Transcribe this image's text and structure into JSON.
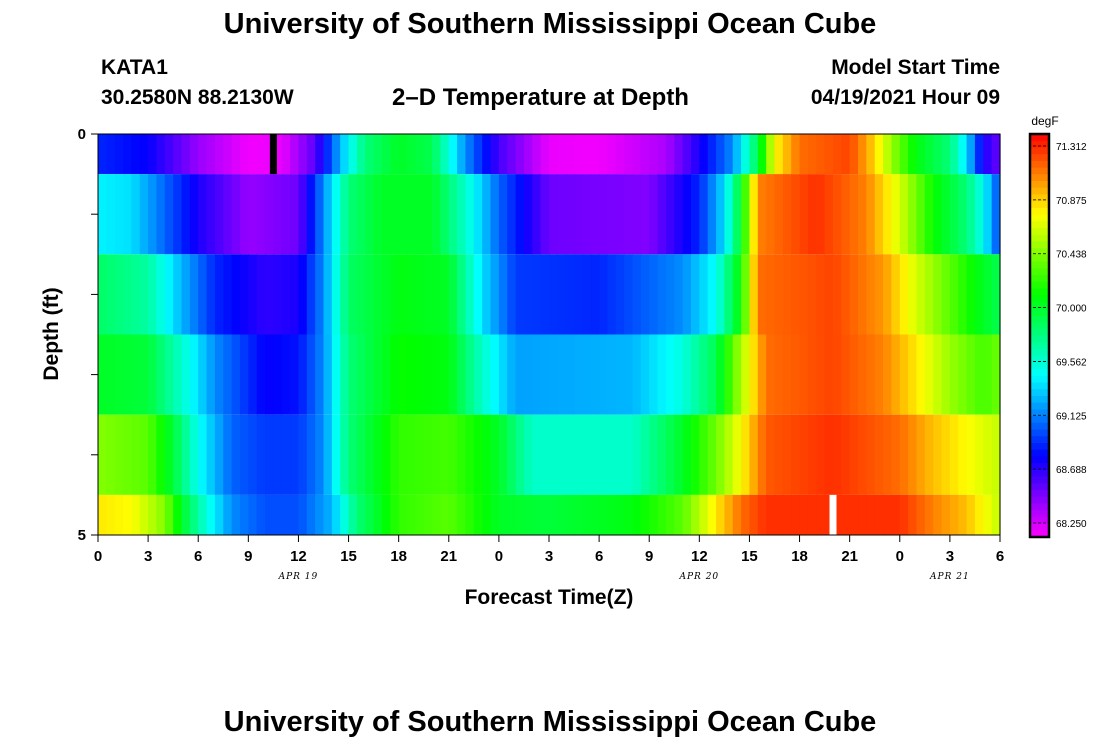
{
  "header": {
    "title": "University of Southern Mississippi Ocean Cube",
    "station_id": "KATA1",
    "station_coords": "30.2580N  88.2130W",
    "chart_title": "2–D Temperature at Depth",
    "model_start_label": "Model Start Time",
    "model_start_value": "04/19/2021 Hour 09"
  },
  "footer": {
    "title": "University of Southern Mississippi Ocean Cube"
  },
  "chart_data": {
    "type": "heatmap",
    "title": "2–D Temperature at Depth",
    "xlabel": "Forecast Time(Z)",
    "ylabel": "Depth (ft)",
    "x_hours_from": "APR 19 00Z",
    "xlim_hours": [
      0,
      54
    ],
    "x_tick_labels": [
      "0",
      "3",
      "6",
      "9",
      "12",
      "15",
      "18",
      "21",
      "0",
      "3",
      "6",
      "9",
      "12",
      "15",
      "18",
      "21",
      "0",
      "3",
      "6"
    ],
    "date_labels": [
      {
        "label": "APR 19",
        "hour": 12
      },
      {
        "label": "APR 20",
        "hour": 36
      },
      {
        "label": "APR 21",
        "hour": 51
      }
    ],
    "y_tick_labels": [
      "0",
      "5"
    ],
    "ylim": [
      0,
      5
    ],
    "depth_band_edges_ft": [
      0,
      0.5,
      1.5,
      2.5,
      3.5,
      4.5,
      5
    ],
    "colorbar": {
      "unit": "degF",
      "min": 68.25,
      "max": 71.312,
      "tick_labels": [
        "71.312",
        "70.875",
        "70.438",
        "70.000",
        "69.562",
        "69.125",
        "68.688",
        "68.250"
      ]
    },
    "markers": [
      {
        "hour": 10.5,
        "depth_from": 0,
        "depth_to": 0.5,
        "color": "#000000"
      },
      {
        "hour": 44,
        "depth_from": 4.5,
        "depth_to": 5,
        "color": "#ffffff"
      }
    ],
    "series": [
      {
        "depth_band": 1,
        "keyframes": [
          [
            0,
            68.95
          ],
          [
            3,
            68.85
          ],
          [
            6,
            68.5
          ],
          [
            9,
            68.28
          ],
          [
            11,
            68.3
          ],
          [
            13,
            68.65
          ],
          [
            14.5,
            69.3
          ],
          [
            16,
            69.8
          ],
          [
            18,
            70.0
          ],
          [
            20,
            69.9
          ],
          [
            22,
            69.2
          ],
          [
            24,
            68.7
          ],
          [
            27,
            68.3
          ],
          [
            30,
            68.28
          ],
          [
            34,
            68.45
          ],
          [
            36,
            68.8
          ],
          [
            38,
            69.2
          ],
          [
            39.5,
            69.9
          ],
          [
            40.5,
            70.7
          ],
          [
            42,
            71.05
          ],
          [
            45,
            71.15
          ],
          [
            46.5,
            70.8
          ],
          [
            47.5,
            70.45
          ],
          [
            49,
            70.05
          ],
          [
            51,
            69.8
          ],
          [
            52,
            69.4
          ],
          [
            53,
            68.8
          ],
          [
            54,
            68.6
          ]
        ]
      },
      {
        "depth_band": 2,
        "keyframes": [
          [
            0,
            69.45
          ],
          [
            2,
            69.4
          ],
          [
            4,
            69.1
          ],
          [
            6,
            68.8
          ],
          [
            9,
            68.5
          ],
          [
            12,
            68.6
          ],
          [
            13.5,
            69.2
          ],
          [
            15,
            69.8
          ],
          [
            17,
            70.0
          ],
          [
            20,
            70.0
          ],
          [
            22,
            69.6
          ],
          [
            24,
            69.1
          ],
          [
            27,
            68.6
          ],
          [
            33,
            68.55
          ],
          [
            36,
            68.95
          ],
          [
            37.5,
            69.4
          ],
          [
            38.5,
            70.0
          ],
          [
            39.5,
            71.0
          ],
          [
            43,
            71.2
          ],
          [
            46,
            71.0
          ],
          [
            48,
            70.6
          ],
          [
            50,
            70.1
          ],
          [
            52,
            69.8
          ],
          [
            53,
            69.5
          ],
          [
            54,
            69.0
          ]
        ]
      },
      {
        "depth_band": 3,
        "keyframes": [
          [
            0,
            69.85
          ],
          [
            3,
            69.7
          ],
          [
            5,
            69.3
          ],
          [
            7,
            68.95
          ],
          [
            10,
            68.75
          ],
          [
            12,
            68.8
          ],
          [
            13.5,
            69.2
          ],
          [
            15,
            69.85
          ],
          [
            18,
            70.05
          ],
          [
            21,
            70.0
          ],
          [
            23,
            69.4
          ],
          [
            25,
            69.0
          ],
          [
            30,
            68.95
          ],
          [
            35,
            69.2
          ],
          [
            37,
            69.5
          ],
          [
            38.5,
            70.1
          ],
          [
            39.5,
            71.05
          ],
          [
            44,
            71.15
          ],
          [
            47,
            70.95
          ],
          [
            49,
            70.6
          ],
          [
            51,
            70.3
          ],
          [
            53,
            70.0
          ],
          [
            54,
            69.9
          ]
        ]
      },
      {
        "depth_band": 4,
        "keyframes": [
          [
            0,
            70.0
          ],
          [
            3,
            69.95
          ],
          [
            5,
            69.6
          ],
          [
            7,
            69.2
          ],
          [
            10,
            68.85
          ],
          [
            12,
            68.9
          ],
          [
            13.5,
            69.2
          ],
          [
            15,
            69.8
          ],
          [
            18,
            70.1
          ],
          [
            21,
            70.05
          ],
          [
            23,
            69.6
          ],
          [
            25,
            69.25
          ],
          [
            32,
            69.3
          ],
          [
            35,
            69.55
          ],
          [
            37,
            69.9
          ],
          [
            38.5,
            70.5
          ],
          [
            40,
            71.05
          ],
          [
            44,
            71.15
          ],
          [
            47,
            71.0
          ],
          [
            49,
            70.75
          ],
          [
            51,
            70.45
          ],
          [
            53,
            70.25
          ],
          [
            54,
            70.35
          ]
        ]
      },
      {
        "depth_band": 5,
        "keyframes": [
          [
            0,
            70.4
          ],
          [
            3,
            70.3
          ],
          [
            4.5,
            69.95
          ],
          [
            6,
            69.5
          ],
          [
            8,
            69.1
          ],
          [
            10,
            69.0
          ],
          [
            12,
            69.0
          ],
          [
            13.5,
            69.2
          ],
          [
            15,
            69.8
          ],
          [
            18,
            70.2
          ],
          [
            21,
            70.25
          ],
          [
            24,
            70.0
          ],
          [
            26,
            69.6
          ],
          [
            32,
            69.6
          ],
          [
            35,
            70.0
          ],
          [
            37,
            70.35
          ],
          [
            38.5,
            70.7
          ],
          [
            40,
            71.1
          ],
          [
            44,
            71.2
          ],
          [
            48,
            71.05
          ],
          [
            50,
            70.85
          ],
          [
            52,
            70.7
          ],
          [
            54,
            70.55
          ]
        ]
      },
      {
        "depth_band": 6,
        "keyframes": [
          [
            0,
            70.75
          ],
          [
            2,
            70.7
          ],
          [
            4,
            70.4
          ],
          [
            5,
            70.0
          ],
          [
            6.5,
            69.55
          ],
          [
            8,
            69.2
          ],
          [
            10,
            69.05
          ],
          [
            12,
            69.05
          ],
          [
            14,
            69.3
          ],
          [
            15.5,
            69.8
          ],
          [
            18,
            70.2
          ],
          [
            21,
            70.3
          ],
          [
            24,
            70.0
          ],
          [
            27,
            69.95
          ],
          [
            32,
            70.05
          ],
          [
            35,
            70.3
          ],
          [
            37,
            70.75
          ],
          [
            38.5,
            71.05
          ],
          [
            40,
            71.2
          ],
          [
            48,
            71.2
          ],
          [
            50,
            71.0
          ],
          [
            52,
            70.85
          ],
          [
            54,
            70.55
          ]
        ]
      }
    ]
  }
}
